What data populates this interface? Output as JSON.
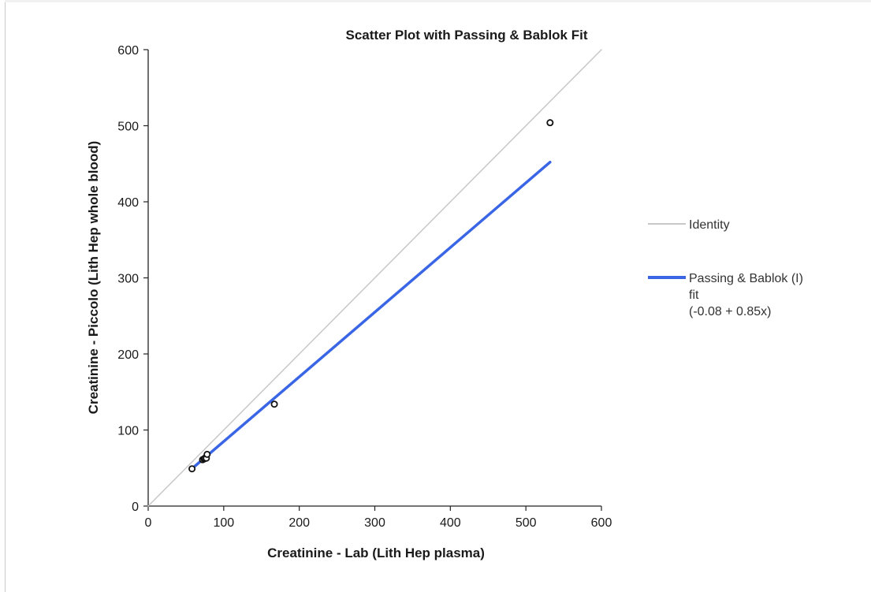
{
  "chart_data": {
    "type": "scatter",
    "title": "Scatter Plot with Passing & Bablok Fit",
    "xlabel": "Creatinine - Lab (Lith Hep plasma)",
    "ylabel": "Creatinine - Piccolo (Lith Hep whole blood)",
    "xlim": [
      0,
      600
    ],
    "ylim": [
      0,
      600
    ],
    "xticks": [
      0,
      100,
      200,
      300,
      400,
      500,
      600
    ],
    "yticks": [
      0,
      100,
      200,
      300,
      400,
      500,
      600
    ],
    "grid": false,
    "legend_position": "right",
    "points": [
      {
        "x": 58,
        "y": 49
      },
      {
        "x": 72,
        "y": 61
      },
      {
        "x": 74,
        "y": 62
      },
      {
        "x": 75,
        "y": 63
      },
      {
        "x": 77,
        "y": 63
      },
      {
        "x": 78,
        "y": 68
      },
      {
        "x": 167,
        "y": 134
      },
      {
        "x": 532,
        "y": 504
      }
    ],
    "series": [
      {
        "name": "Identity",
        "kind": "line",
        "color": "#c8c8c8",
        "x": [
          0,
          600
        ],
        "y": [
          0,
          600
        ]
      },
      {
        "name": "Passing & Bablok (I) fit (-0.08 + 0.85x)",
        "kind": "line",
        "color": "#3a66e6",
        "x": [
          58,
          532
        ],
        "y": [
          49.22,
          452.12
        ]
      }
    ],
    "legend": [
      {
        "lines": [
          "Identity"
        ],
        "color": "#c8c8c8",
        "width": 2
      },
      {
        "lines": [
          "Passing & Bablok (I)",
          "fit",
          "(-0.08 + 0.85x)"
        ],
        "color": "#3a66e6",
        "width": 4
      }
    ]
  }
}
